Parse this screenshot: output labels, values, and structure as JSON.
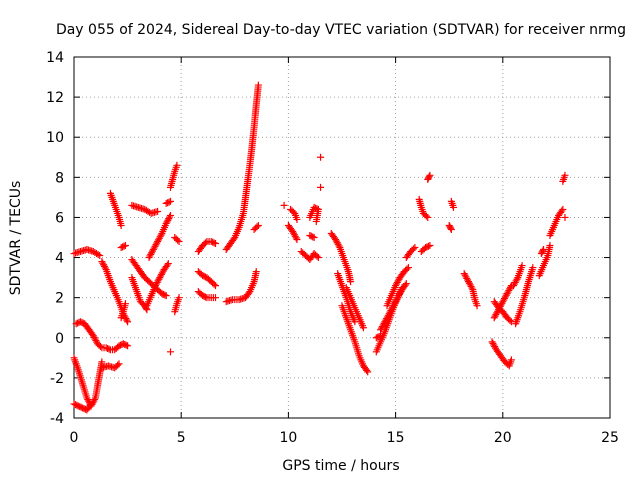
{
  "chart_data": {
    "type": "scatter",
    "title": "Day 055 of 2024, Sidereal Day-to-day VTEC variation (SDTVAR) for receiver nrmg",
    "xlabel": "GPS time / hours",
    "ylabel": "SDTVAR / TECUs",
    "xlim": [
      0,
      25
    ],
    "ylim": [
      -4,
      14
    ],
    "x_ticks": [
      "0",
      "5",
      "10",
      "15",
      "20",
      "25"
    ],
    "y_ticks": [
      "-4",
      "-2",
      "0",
      "2",
      "4",
      "6",
      "8",
      "10",
      "12",
      "14"
    ],
    "grid": true,
    "marker": "plus",
    "marker_color": "#ff0000",
    "series": [
      {
        "name": "nrmg",
        "segments": [
          [
            [
              0.0,
              4.2
            ],
            [
              0.3,
              4.3
            ],
            [
              0.6,
              4.4
            ],
            [
              0.9,
              4.3
            ],
            [
              1.2,
              4.1
            ]
          ],
          [
            [
              1.3,
              3.8
            ],
            [
              1.5,
              3.4
            ],
            [
              1.7,
              2.8
            ],
            [
              1.9,
              2.3
            ],
            [
              2.1,
              1.8
            ],
            [
              2.3,
              1.2
            ],
            [
              2.5,
              0.8
            ]
          ],
          [
            [
              0.0,
              -1.0
            ],
            [
              0.2,
              -1.6
            ],
            [
              0.4,
              -2.3
            ],
            [
              0.6,
              -3.0
            ],
            [
              0.8,
              -3.4
            ],
            [
              1.0,
              -3.0
            ],
            [
              1.1,
              -2.4
            ],
            [
              1.2,
              -1.8
            ],
            [
              1.3,
              -1.2
            ]
          ],
          [
            [
              0.0,
              -3.3
            ],
            [
              0.2,
              -3.4
            ],
            [
              0.4,
              -3.5
            ],
            [
              0.6,
              -3.6
            ],
            [
              0.8,
              -3.3
            ]
          ],
          [
            [
              0.1,
              0.7
            ],
            [
              0.3,
              0.8
            ],
            [
              0.5,
              0.7
            ],
            [
              0.7,
              0.4
            ],
            [
              0.9,
              0.1
            ],
            [
              1.1,
              -0.3
            ],
            [
              1.3,
              -0.5
            ],
            [
              1.5,
              -0.5
            ],
            [
              1.7,
              -0.6
            ],
            [
              1.9,
              -0.6
            ],
            [
              2.1,
              -0.4
            ],
            [
              2.3,
              -0.3
            ],
            [
              2.5,
              -0.4
            ]
          ],
          [
            [
              1.3,
              -1.5
            ],
            [
              1.6,
              -1.4
            ],
            [
              1.9,
              -1.5
            ],
            [
              2.1,
              -1.3
            ]
          ],
          [
            [
              1.7,
              7.2
            ],
            [
              1.8,
              6.9
            ],
            [
              1.9,
              6.6
            ],
            [
              2.0,
              6.3
            ],
            [
              2.1,
              6.0
            ],
            [
              2.2,
              5.6
            ]
          ],
          [
            [
              2.2,
              4.5
            ],
            [
              2.4,
              4.6
            ]
          ],
          [
            [
              2.2,
              1.0
            ],
            [
              2.3,
              1.3
            ],
            [
              2.4,
              1.7
            ]
          ],
          [
            [
              2.7,
              3.0
            ],
            [
              2.8,
              2.7
            ],
            [
              2.9,
              2.4
            ],
            [
              3.0,
              2.1
            ],
            [
              3.1,
              1.8
            ],
            [
              3.3,
              1.6
            ],
            [
              3.4,
              1.4
            ]
          ],
          [
            [
              2.7,
              6.6
            ],
            [
              3.0,
              6.5
            ],
            [
              3.3,
              6.4
            ],
            [
              3.6,
              6.2
            ],
            [
              3.9,
              6.3
            ]
          ],
          [
            [
              2.7,
              3.9
            ],
            [
              2.9,
              3.6
            ],
            [
              3.1,
              3.3
            ],
            [
              3.3,
              3.0
            ],
            [
              3.5,
              2.8
            ],
            [
              3.7,
              2.6
            ],
            [
              3.9,
              2.4
            ],
            [
              4.1,
              2.2
            ],
            [
              4.3,
              2.1
            ]
          ],
          [
            [
              3.5,
              4.0
            ],
            [
              3.7,
              4.4
            ],
            [
              3.9,
              4.8
            ],
            [
              4.1,
              5.2
            ],
            [
              4.3,
              5.7
            ],
            [
              4.5,
              6.1
            ]
          ],
          [
            [
              3.4,
              1.6
            ],
            [
              3.6,
              2.1
            ],
            [
              3.8,
              2.6
            ],
            [
              4.0,
              3.0
            ],
            [
              4.2,
              3.4
            ],
            [
              4.4,
              3.7
            ]
          ],
          [
            [
              4.3,
              6.7
            ],
            [
              4.5,
              6.8
            ]
          ],
          [
            [
              4.5,
              7.5
            ],
            [
              4.6,
              7.9
            ],
            [
              4.7,
              8.3
            ],
            [
              4.8,
              8.6
            ]
          ],
          [
            [
              4.7,
              5.0
            ],
            [
              4.9,
              4.8
            ]
          ],
          [
            [
              4.7,
              1.3
            ],
            [
              4.8,
              1.7
            ],
            [
              4.9,
              2.0
            ]
          ],
          [
            [
              4.5,
              -0.7
            ]
          ],
          [
            [
              5.8,
              4.3
            ],
            [
              6.0,
              4.6
            ],
            [
              6.2,
              4.8
            ],
            [
              6.4,
              4.8
            ],
            [
              6.6,
              4.7
            ]
          ],
          [
            [
              5.8,
              3.3
            ],
            [
              6.0,
              3.1
            ],
            [
              6.2,
              3.0
            ],
            [
              6.4,
              2.8
            ],
            [
              6.6,
              2.6
            ]
          ],
          [
            [
              5.8,
              2.3
            ],
            [
              6.0,
              2.1
            ],
            [
              6.2,
              2.0
            ],
            [
              6.4,
              2.0
            ],
            [
              6.6,
              2.0
            ]
          ],
          [
            [
              7.1,
              4.4
            ],
            [
              7.3,
              4.7
            ],
            [
              7.5,
              5.0
            ],
            [
              7.7,
              5.5
            ],
            [
              7.9,
              6.2
            ],
            [
              8.0,
              7.0
            ],
            [
              8.1,
              7.8
            ],
            [
              8.2,
              8.6
            ],
            [
              8.3,
              9.5
            ],
            [
              8.4,
              10.5
            ],
            [
              8.5,
              11.6
            ],
            [
              8.6,
              12.6
            ]
          ],
          [
            [
              7.1,
              1.8
            ],
            [
              7.4,
              1.9
            ],
            [
              7.7,
              1.9
            ],
            [
              8.0,
              2.0
            ],
            [
              8.2,
              2.3
            ],
            [
              8.4,
              2.8
            ],
            [
              8.5,
              3.3
            ]
          ],
          [
            [
              8.4,
              5.4
            ],
            [
              8.6,
              5.6
            ]
          ],
          [
            [
              9.8,
              6.6
            ]
          ],
          [
            [
              10.1,
              6.4
            ],
            [
              10.3,
              6.2
            ],
            [
              10.4,
              5.9
            ]
          ],
          [
            [
              10.0,
              5.6
            ],
            [
              10.2,
              5.3
            ],
            [
              10.4,
              4.9
            ]
          ],
          [
            [
              10.6,
              4.3
            ],
            [
              10.8,
              4.1
            ],
            [
              11.0,
              3.9
            ],
            [
              11.2,
              4.2
            ],
            [
              11.4,
              4.0
            ]
          ],
          [
            [
              11.0,
              6.0
            ],
            [
              11.2,
              6.5
            ],
            [
              11.4,
              6.4
            ],
            [
              11.3,
              5.8
            ]
          ],
          [
            [
              11.5,
              7.5
            ]
          ],
          [
            [
              11.5,
              9.0
            ]
          ],
          [
            [
              11.0,
              5.1
            ],
            [
              11.2,
              5.0
            ]
          ],
          [
            [
              12.0,
              5.2
            ],
            [
              12.2,
              4.9
            ],
            [
              12.4,
              4.5
            ],
            [
              12.6,
              3.9
            ],
            [
              12.8,
              3.3
            ],
            [
              12.9,
              2.8
            ]
          ],
          [
            [
              12.3,
              3.2
            ],
            [
              12.5,
              2.6
            ],
            [
              12.7,
              2.0
            ],
            [
              12.9,
              1.3
            ],
            [
              13.1,
              0.8
            ]
          ],
          [
            [
              12.5,
              1.6
            ],
            [
              12.7,
              1.0
            ],
            [
              12.9,
              0.4
            ],
            [
              13.1,
              -0.2
            ],
            [
              13.3,
              -0.9
            ],
            [
              13.5,
              -1.4
            ],
            [
              13.7,
              -1.7
            ]
          ],
          [
            [
              12.7,
              2.5
            ],
            [
              12.9,
              2.0
            ],
            [
              13.1,
              1.5
            ],
            [
              13.3,
              1.0
            ],
            [
              13.5,
              0.5
            ]
          ],
          [
            [
              14.1,
              -0.7
            ],
            [
              14.3,
              -0.2
            ],
            [
              14.5,
              0.3
            ],
            [
              14.7,
              0.9
            ],
            [
              14.9,
              1.5
            ],
            [
              15.1,
              2.0
            ],
            [
              15.3,
              2.5
            ]
          ],
          [
            [
              14.3,
              0.4
            ],
            [
              14.5,
              0.8
            ],
            [
              14.7,
              1.2
            ],
            [
              14.9,
              1.6
            ],
            [
              15.1,
              2.0
            ],
            [
              15.3,
              2.4
            ],
            [
              15.5,
              2.7
            ]
          ],
          [
            [
              14.6,
              1.6
            ],
            [
              14.8,
              2.1
            ],
            [
              15.0,
              2.6
            ],
            [
              15.2,
              3.0
            ],
            [
              15.4,
              3.3
            ],
            [
              15.6,
              3.5
            ]
          ],
          [
            [
              14.1,
              0.0
            ],
            [
              14.3,
              0.1
            ]
          ],
          [
            [
              15.5,
              4.0
            ],
            [
              15.7,
              4.3
            ],
            [
              15.9,
              4.5
            ]
          ],
          [
            [
              16.1,
              6.9
            ],
            [
              16.2,
              6.5
            ],
            [
              16.3,
              6.2
            ],
            [
              16.5,
              6.0
            ]
          ],
          [
            [
              16.2,
              4.3
            ],
            [
              16.4,
              4.5
            ],
            [
              16.6,
              4.6
            ]
          ],
          [
            [
              16.5,
              7.9
            ],
            [
              16.6,
              8.1
            ]
          ],
          [
            [
              17.6,
              6.8
            ],
            [
              17.7,
              6.5
            ]
          ],
          [
            [
              17.5,
              5.6
            ],
            [
              17.6,
              5.4
            ]
          ],
          [
            [
              18.2,
              3.2
            ],
            [
              18.4,
              2.8
            ],
            [
              18.6,
              2.4
            ],
            [
              18.7,
              1.9
            ],
            [
              18.8,
              1.6
            ]
          ],
          [
            [
              19.5,
              -0.2
            ],
            [
              19.7,
              -0.6
            ],
            [
              19.9,
              -0.9
            ],
            [
              20.1,
              -1.2
            ],
            [
              20.3,
              -1.4
            ],
            [
              20.4,
              -1.1
            ]
          ],
          [
            [
              19.6,
              1.0
            ],
            [
              19.8,
              1.4
            ],
            [
              20.0,
              1.8
            ],
            [
              20.2,
              2.2
            ],
            [
              20.4,
              2.6
            ]
          ],
          [
            [
              19.6,
              1.8
            ],
            [
              19.8,
              1.5
            ],
            [
              20.0,
              1.3
            ],
            [
              20.2,
              1.0
            ],
            [
              20.4,
              0.8
            ]
          ],
          [
            [
              20.6,
              0.7
            ],
            [
              20.8,
              1.3
            ],
            [
              21.0,
              2.0
            ],
            [
              21.2,
              2.8
            ],
            [
              21.4,
              3.5
            ]
          ],
          [
            [
              20.5,
              2.6
            ],
            [
              20.7,
              3.0
            ],
            [
              20.9,
              3.6
            ]
          ],
          [
            [
              21.7,
              3.1
            ],
            [
              21.9,
              3.6
            ],
            [
              22.1,
              4.1
            ],
            [
              22.2,
              4.6
            ]
          ],
          [
            [
              21.8,
              4.2
            ],
            [
              21.9,
              4.4
            ]
          ],
          [
            [
              22.2,
              5.1
            ],
            [
              22.4,
              5.6
            ],
            [
              22.6,
              6.1
            ],
            [
              22.8,
              6.4
            ]
          ],
          [
            [
              22.9,
              6.0
            ]
          ],
          [
            [
              22.8,
              7.8
            ],
            [
              22.9,
              8.1
            ]
          ]
        ]
      }
    ]
  }
}
